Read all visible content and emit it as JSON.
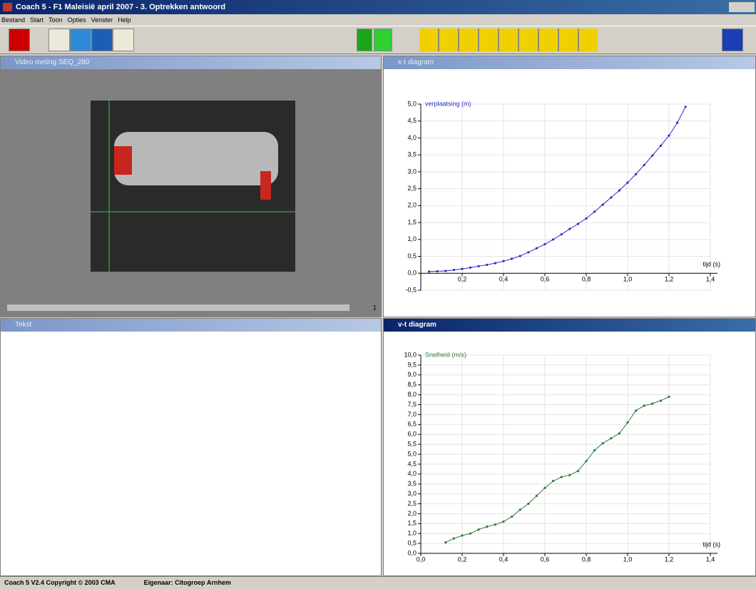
{
  "window": {
    "title": "Coach 5 - F1 Maleisië april 2007 - 3. Optrekken antwoord",
    "menu": [
      "Bestand",
      "Start",
      "Toon",
      "Opties",
      "Venster",
      "Help"
    ],
    "status": [
      "Coach 5 V2.4 Copyright © 2003 CMA",
      "Eigenaar: Citogroep Arnhem"
    ]
  },
  "panels": {
    "video": {
      "title": "Video meting  SEQ_280",
      "frame": "1"
    },
    "text": {
      "title": "Tekst"
    }
  },
  "chart_data": [
    {
      "type": "line",
      "title": "x-t diagram",
      "y_label": "verplaatsing (m)",
      "x_label": "tijd (s)",
      "color": "#2a2ad0",
      "grid": true,
      "xlim": [
        0,
        1.4
      ],
      "ylim": [
        -0.5,
        5.0
      ],
      "xticks": [
        {
          "value": 0.2,
          "label": "0,2"
        },
        {
          "value": 0.4,
          "label": "0,4"
        },
        {
          "value": 0.6,
          "label": "0,6"
        },
        {
          "value": 0.8,
          "label": "0,8"
        },
        {
          "value": 1.0,
          "label": "1,0"
        },
        {
          "value": 1.2,
          "label": "1,2"
        },
        {
          "value": 1.4,
          "label": "1,4"
        }
      ],
      "yticks": [
        {
          "value": -0.5,
          "label": "-0,5"
        },
        {
          "value": 0,
          "label": "0,0"
        },
        {
          "value": 0.5,
          "label": "0,5"
        },
        {
          "value": 1.0,
          "label": "1,0"
        },
        {
          "value": 1.5,
          "label": "1,5"
        },
        {
          "value": 2.0,
          "label": "2,0"
        },
        {
          "value": 2.5,
          "label": "2,5"
        },
        {
          "value": 3.0,
          "label": "3,0"
        },
        {
          "value": 3.5,
          "label": "3,5"
        },
        {
          "value": 4.0,
          "label": "4,0"
        },
        {
          "value": 4.5,
          "label": "4,5"
        },
        {
          "value": 5.0,
          "label": "5,0"
        }
      ],
      "x": [
        0.04,
        0.08,
        0.12,
        0.16,
        0.2,
        0.24,
        0.28,
        0.32,
        0.36,
        0.4,
        0.44,
        0.48,
        0.52,
        0.56,
        0.6,
        0.64,
        0.68,
        0.72,
        0.76,
        0.8,
        0.84,
        0.88,
        0.92,
        0.96,
        1.0,
        1.04,
        1.08,
        1.12,
        1.16,
        1.2,
        1.24,
        1.28
      ],
      "values": [
        0.05,
        0.06,
        0.07,
        0.1,
        0.13,
        0.17,
        0.21,
        0.25,
        0.3,
        0.36,
        0.43,
        0.51,
        0.62,
        0.74,
        0.86,
        1.0,
        1.15,
        1.31,
        1.46,
        1.62,
        1.82,
        2.03,
        2.24,
        2.45,
        2.68,
        2.93,
        3.2,
        3.48,
        3.77,
        4.07,
        4.45,
        4.92
      ]
    },
    {
      "type": "line",
      "title": "v-t diagram",
      "y_label": "Snelheid (m/s)",
      "x_label": "tijd (s)",
      "color": "#2e7d32",
      "grid": true,
      "xlim": [
        0,
        1.4
      ],
      "ylim": [
        0,
        10.0
      ],
      "xticks": [
        {
          "value": 0,
          "label": "0,0"
        },
        {
          "value": 0.2,
          "label": "0,2"
        },
        {
          "value": 0.4,
          "label": "0,4"
        },
        {
          "value": 0.6,
          "label": "0,6"
        },
        {
          "value": 0.8,
          "label": "0,8"
        },
        {
          "value": 1.0,
          "label": "1,0"
        },
        {
          "value": 1.2,
          "label": "1,2"
        },
        {
          "value": 1.4,
          "label": "1,4"
        }
      ],
      "yticks": [
        {
          "value": 0,
          "label": "0,0"
        },
        {
          "value": 0.5,
          "label": "0,5"
        },
        {
          "value": 1.0,
          "label": "1,0"
        },
        {
          "value": 1.5,
          "label": "1,5"
        },
        {
          "value": 2.0,
          "label": "2,0"
        },
        {
          "value": 2.5,
          "label": "2,5"
        },
        {
          "value": 3.0,
          "label": "3,0"
        },
        {
          "value": 3.5,
          "label": "3,5"
        },
        {
          "value": 4.0,
          "label": "4,0"
        },
        {
          "value": 4.5,
          "label": "4,5"
        },
        {
          "value": 5.0,
          "label": "5,0"
        },
        {
          "value": 5.5,
          "label": "5,5"
        },
        {
          "value": 6.0,
          "label": "6,0"
        },
        {
          "value": 6.5,
          "label": "6,5"
        },
        {
          "value": 7.0,
          "label": "7,0"
        },
        {
          "value": 7.5,
          "label": "7,5"
        },
        {
          "value": 8.0,
          "label": "8,0"
        },
        {
          "value": 8.5,
          "label": "8,5"
        },
        {
          "value": 9.0,
          "label": "9,0"
        },
        {
          "value": 9.5,
          "label": "9,5"
        },
        {
          "value": 10.0,
          "label": "10,0"
        }
      ],
      "x": [
        0.12,
        0.16,
        0.2,
        0.24,
        0.28,
        0.32,
        0.36,
        0.4,
        0.44,
        0.48,
        0.52,
        0.56,
        0.6,
        0.64,
        0.68,
        0.72,
        0.76,
        0.8,
        0.84,
        0.88,
        0.92,
        0.96,
        1.0,
        1.04,
        1.08,
        1.12,
        1.16,
        1.2
      ],
      "values": [
        0.55,
        0.75,
        0.9,
        1.0,
        1.2,
        1.35,
        1.45,
        1.6,
        1.85,
        2.2,
        2.5,
        2.9,
        3.3,
        3.65,
        3.85,
        3.95,
        4.15,
        4.65,
        5.2,
        5.55,
        5.8,
        6.05,
        6.6,
        7.2,
        7.45,
        7.55,
        7.7,
        7.9
      ]
    }
  ]
}
